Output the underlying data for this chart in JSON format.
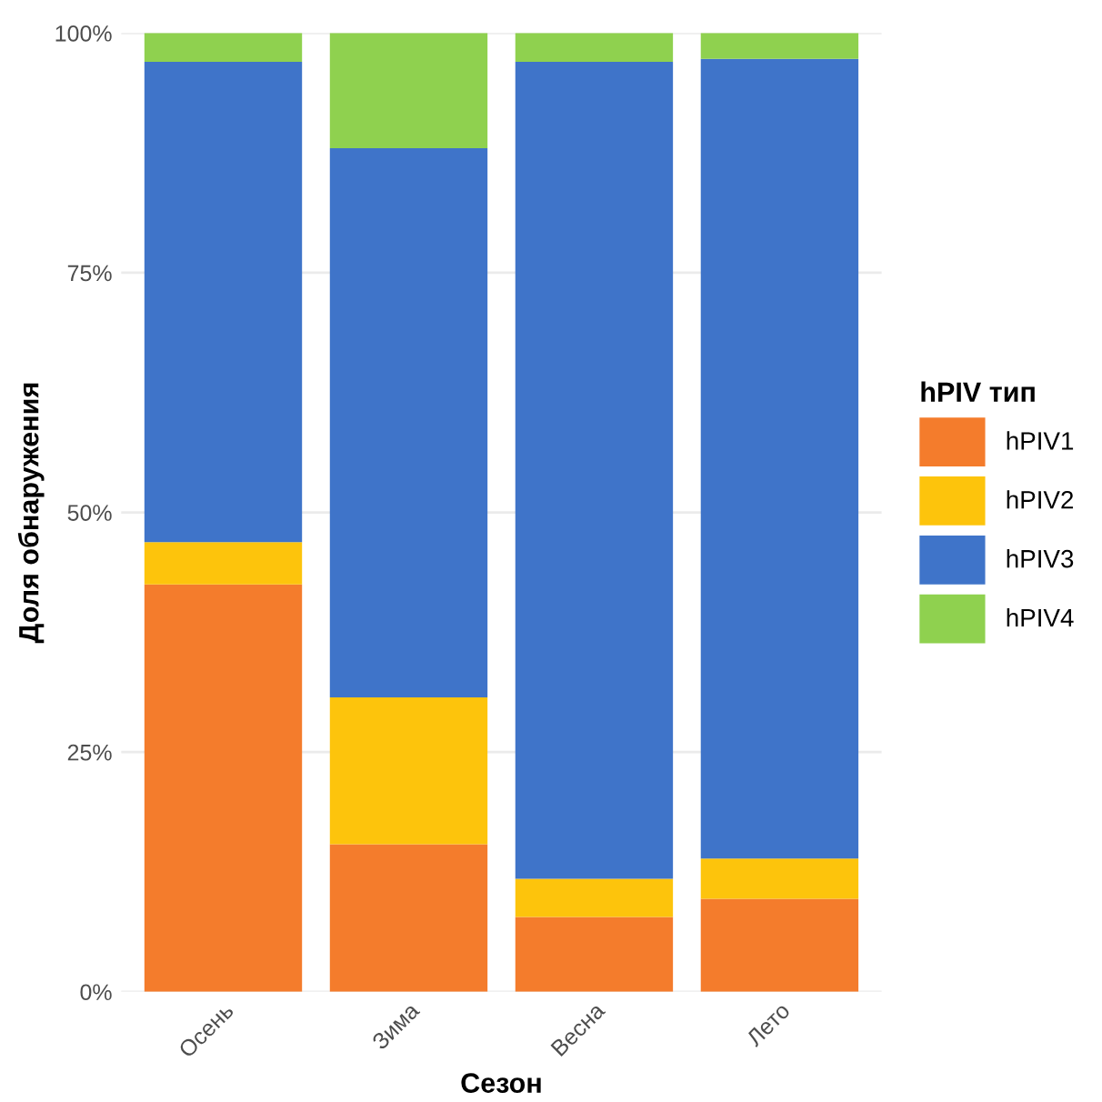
{
  "chart_data": {
    "type": "bar",
    "stacked": true,
    "xlabel": "Сезон",
    "ylabel": "Доля обнаружения",
    "legend_title": "hPIV тип",
    "legend": "right",
    "grid": "y",
    "categories": [
      "Осень",
      "Зима",
      "Весна",
      "Лето"
    ],
    "series": [
      {
        "name": "hPIV1",
        "color": "#f47c2c",
        "values": [
          42.5,
          15.4,
          7.8,
          9.7
        ]
      },
      {
        "name": "hPIV2",
        "color": "#fdc40c",
        "values": [
          4.4,
          15.3,
          4.0,
          4.2
        ]
      },
      {
        "name": "hPIV3",
        "color": "#3f74c9",
        "values": [
          50.1,
          57.3,
          85.2,
          83.4
        ]
      },
      {
        "name": "hPIV4",
        "color": "#8fd14f",
        "values": [
          3.0,
          12.0,
          3.0,
          2.7
        ]
      }
    ],
    "ylim": [
      0,
      100
    ],
    "yticks": [
      {
        "value": 0,
        "label": "0%"
      },
      {
        "value": 25,
        "label": "25%"
      },
      {
        "value": 50,
        "label": "50%"
      },
      {
        "value": 75,
        "label": "75%"
      },
      {
        "value": 100,
        "label": "100%"
      }
    ]
  }
}
